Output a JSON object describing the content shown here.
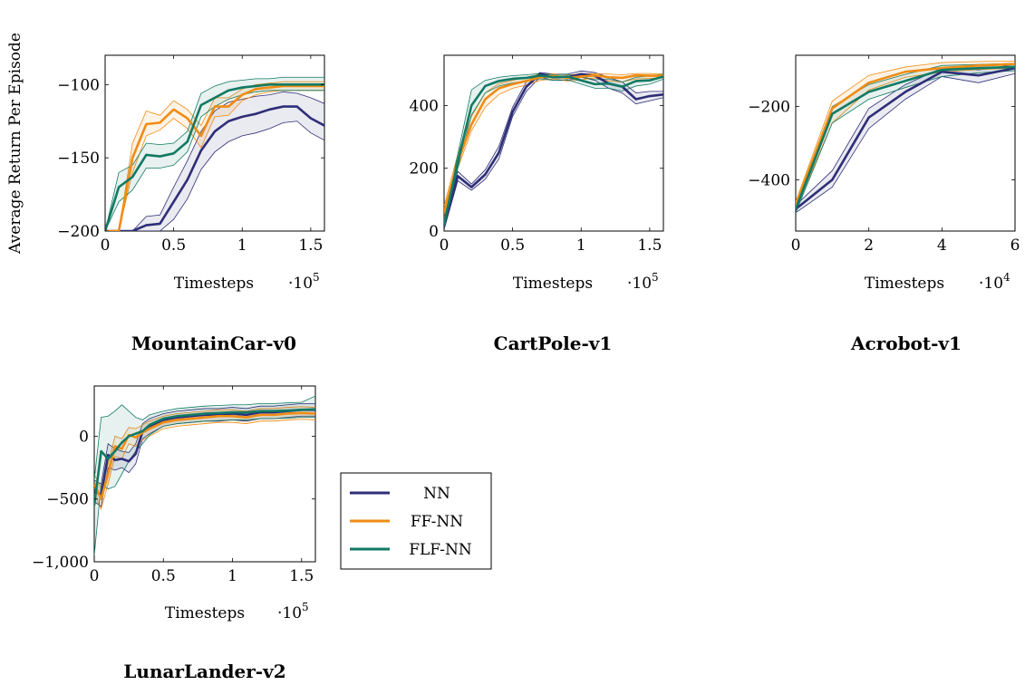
{
  "ylabel": "Average Return Per Episode",
  "colors": {
    "NN": "#2e2e78",
    "FF-NN": "#f08c14",
    "FLF-NN": "#127a64"
  },
  "legend": {
    "placement": "right of LunarLander-v2",
    "entries": [
      "NN",
      "FF-NN",
      "FLF-NN"
    ]
  },
  "chart_data": [
    {
      "type": "line",
      "title": "MountainCar-v0",
      "xlabel": "Timesteps",
      "xscale_label": "·10",
      "xscale_exp": "5",
      "xlim": [
        0,
        1.6
      ],
      "ylim": [
        -200,
        -80
      ],
      "xticks": [
        0,
        0.5,
        1,
        1.5
      ],
      "xtick_labels": [
        "0",
        "0.5",
        "1",
        "1.5"
      ],
      "yticks": [
        -200,
        -150,
        -100
      ],
      "ytick_labels": [
        "−200",
        "−150",
        "−100"
      ],
      "show_ylabel": true,
      "series": [
        {
          "name": "NN",
          "x": [
            0,
            0.1,
            0.2,
            0.3,
            0.4,
            0.5,
            0.6,
            0.7,
            0.8,
            0.9,
            1.0,
            1.1,
            1.2,
            1.3,
            1.4,
            1.5,
            1.6
          ],
          "mean": [
            -200,
            -200,
            -200,
            -196,
            -195,
            -180,
            -165,
            -145,
            -132,
            -125,
            -122,
            -120,
            -117,
            -115,
            -115,
            -123,
            -128
          ],
          "upper": [
            -200,
            -200,
            -200,
            -190,
            -189,
            -170,
            -152,
            -132,
            -118,
            -112,
            -110,
            -108,
            -107,
            -105,
            -106,
            -109,
            -113
          ],
          "lower": [
            -200,
            -200,
            -200,
            -200,
            -200,
            -192,
            -178,
            -158,
            -146,
            -139,
            -135,
            -133,
            -130,
            -126,
            -125,
            -133,
            -138
          ]
        },
        {
          "name": "FF-NN",
          "x": [
            0,
            0.1,
            0.2,
            0.3,
            0.4,
            0.5,
            0.6,
            0.7,
            0.8,
            0.9,
            1.0,
            1.1,
            1.2,
            1.3,
            1.4,
            1.5,
            1.6
          ],
          "mean": [
            -200,
            -200,
            -150,
            -127,
            -126,
            -117,
            -123,
            -135,
            -115,
            -115,
            -107,
            -103,
            -102,
            -101,
            -101,
            -101,
            -101
          ],
          "upper": [
            -200,
            -200,
            -140,
            -118,
            -121,
            -111,
            -117,
            -128,
            -109,
            -109,
            -103,
            -100,
            -99,
            -98,
            -98,
            -98,
            -98
          ],
          "lower": [
            -200,
            -200,
            -160,
            -135,
            -131,
            -123,
            -130,
            -143,
            -122,
            -121,
            -111,
            -107,
            -105,
            -104,
            -104,
            -104,
            -104
          ]
        },
        {
          "name": "FLF-NN",
          "x": [
            0,
            0.1,
            0.2,
            0.3,
            0.4,
            0.5,
            0.6,
            0.7,
            0.8,
            0.9,
            1.0,
            1.1,
            1.2,
            1.3,
            1.4,
            1.5,
            1.6
          ],
          "mean": [
            -200,
            -170,
            -163,
            -148,
            -149,
            -147,
            -139,
            -114,
            -109,
            -104,
            -102,
            -101,
            -100,
            -100,
            -100,
            -100,
            -100
          ],
          "upper": [
            -200,
            -160,
            -155,
            -140,
            -141,
            -140,
            -132,
            -106,
            -101,
            -98,
            -97,
            -96,
            -96,
            -95,
            -95,
            -95,
            -95
          ],
          "lower": [
            -200,
            -180,
            -172,
            -157,
            -157,
            -155,
            -146,
            -122,
            -115,
            -110,
            -107,
            -105,
            -104,
            -104,
            -104,
            -104,
            -104
          ]
        }
      ]
    },
    {
      "type": "line",
      "title": "CartPole-v1",
      "xlabel": "Timesteps",
      "xscale_label": "·10",
      "xscale_exp": "5",
      "xlim": [
        0,
        1.6
      ],
      "ylim": [
        0,
        560
      ],
      "xticks": [
        0,
        0.5,
        1,
        1.5
      ],
      "xtick_labels": [
        "0",
        "0.5",
        "1",
        "1.5"
      ],
      "yticks": [
        0,
        200,
        400
      ],
      "ytick_labels": [
        "0",
        "200",
        "400"
      ],
      "show_ylabel": false,
      "series": [
        {
          "name": "NN",
          "x": [
            0,
            0.1,
            0.2,
            0.3,
            0.4,
            0.5,
            0.6,
            0.7,
            0.8,
            0.9,
            1.0,
            1.1,
            1.2,
            1.3,
            1.4,
            1.5,
            1.6
          ],
          "mean": [
            15,
            175,
            140,
            180,
            250,
            380,
            460,
            500,
            490,
            490,
            500,
            495,
            470,
            460,
            420,
            430,
            435
          ],
          "upper": [
            25,
            190,
            150,
            195,
            270,
            395,
            475,
            505,
            500,
            500,
            510,
            505,
            490,
            475,
            440,
            445,
            445
          ],
          "lower": [
            5,
            160,
            130,
            165,
            230,
            365,
            445,
            490,
            480,
            480,
            490,
            480,
            455,
            440,
            405,
            415,
            425
          ]
        },
        {
          "name": "FF-NN",
          "x": [
            0,
            0.1,
            0.2,
            0.3,
            0.4,
            0.5,
            0.6,
            0.7,
            0.8,
            0.9,
            1.0,
            1.1,
            1.2,
            1.3,
            1.4,
            1.5,
            1.6
          ],
          "mean": [
            60,
            220,
            340,
            420,
            455,
            468,
            478,
            490,
            494,
            488,
            492,
            496,
            490,
            488,
            496,
            495,
            495
          ],
          "upper": [
            80,
            245,
            365,
            440,
            470,
            480,
            490,
            500,
            500,
            498,
            500,
            502,
            500,
            498,
            502,
            502,
            500
          ],
          "lower": [
            40,
            200,
            320,
            395,
            435,
            455,
            465,
            480,
            485,
            478,
            482,
            488,
            478,
            475,
            485,
            486,
            488
          ]
        },
        {
          "name": "FLF-NN",
          "x": [
            0,
            0.1,
            0.2,
            0.3,
            0.4,
            0.5,
            0.6,
            0.7,
            0.8,
            0.9,
            1.0,
            1.1,
            1.2,
            1.3,
            1.4,
            1.5,
            1.6
          ],
          "mean": [
            20,
            220,
            400,
            462,
            478,
            485,
            488,
            495,
            490,
            492,
            480,
            468,
            470,
            460,
            478,
            480,
            492
          ],
          "upper": [
            35,
            245,
            450,
            480,
            490,
            495,
            498,
            502,
            498,
            500,
            492,
            482,
            485,
            475,
            490,
            494,
            500
          ],
          "lower": [
            10,
            200,
            370,
            440,
            462,
            472,
            478,
            485,
            480,
            482,
            468,
            455,
            455,
            446,
            462,
            468,
            484
          ]
        }
      ]
    },
    {
      "type": "line",
      "title": "Acrobot-v1",
      "xlabel": "Timesteps",
      "xscale_label": "·10",
      "xscale_exp": "4",
      "xlim": [
        0,
        6
      ],
      "ylim": [
        -540,
        -60
      ],
      "xticks": [
        0,
        2,
        4,
        6
      ],
      "xtick_labels": [
        "0",
        "2",
        "4",
        "6"
      ],
      "yticks": [
        -400,
        -200
      ],
      "ytick_labels": [
        "−400",
        "−200"
      ],
      "show_ylabel": false,
      "series": [
        {
          "name": "NN",
          "x": [
            0,
            1,
            2,
            3,
            4,
            5,
            6
          ],
          "mean": [
            -480,
            -400,
            -230,
            -160,
            -105,
            -115,
            -95
          ],
          "upper": [
            -470,
            -375,
            -205,
            -140,
            -95,
            -100,
            -85
          ],
          "lower": [
            -490,
            -420,
            -260,
            -180,
            -118,
            -135,
            -110
          ]
        },
        {
          "name": "FF-NN",
          "x": [
            0,
            1,
            2,
            3,
            4,
            5,
            6
          ],
          "mean": [
            -470,
            -205,
            -135,
            -105,
            -95,
            -88,
            -84
          ],
          "upper": [
            -460,
            -185,
            -115,
            -92,
            -80,
            -77,
            -76
          ],
          "lower": [
            -480,
            -245,
            -155,
            -120,
            -106,
            -99,
            -95
          ]
        },
        {
          "name": "FLF-NN",
          "x": [
            0,
            1,
            2,
            3,
            4,
            5,
            6
          ],
          "mean": [
            -480,
            -220,
            -160,
            -130,
            -100,
            -95,
            -92
          ],
          "upper": [
            -470,
            -200,
            -140,
            -112,
            -88,
            -85,
            -82
          ],
          "lower": [
            -490,
            -245,
            -180,
            -148,
            -118,
            -108,
            -102
          ]
        }
      ]
    },
    {
      "type": "line",
      "title": "LunarLander-v2",
      "xlabel": "Timesteps",
      "xscale_label": "·10",
      "xscale_exp": "5",
      "xlim": [
        0,
        1.6
      ],
      "ylim": [
        -1000,
        400
      ],
      "xticks": [
        0,
        0.5,
        1,
        1.5
      ],
      "xtick_labels": [
        "0",
        "0.5",
        "1",
        "1.5"
      ],
      "yticks": [
        -1000,
        -500,
        0
      ],
      "ytick_labels": [
        "−1,000",
        "−500",
        "0"
      ],
      "show_ylabel": false,
      "series": [
        {
          "name": "NN",
          "x": [
            0,
            0.05,
            0.1,
            0.15,
            0.2,
            0.25,
            0.3,
            0.35,
            0.4,
            0.5,
            0.6,
            0.7,
            0.8,
            0.9,
            1.0,
            1.1,
            1.2,
            1.3,
            1.4,
            1.5,
            1.6
          ],
          "mean": [
            -430,
            -470,
            -150,
            -190,
            -180,
            -200,
            -140,
            40,
            80,
            130,
            150,
            160,
            170,
            170,
            180,
            170,
            190,
            190,
            200,
            210,
            210
          ],
          "upper": [
            -350,
            -380,
            -60,
            -100,
            -120,
            -130,
            -60,
            100,
            140,
            180,
            200,
            210,
            220,
            220,
            230,
            220,
            240,
            240,
            250,
            260,
            260
          ],
          "lower": [
            -520,
            -560,
            -250,
            -270,
            -250,
            -290,
            -220,
            -20,
            20,
            80,
            100,
            110,
            120,
            120,
            130,
            120,
            140,
            140,
            150,
            160,
            160
          ]
        },
        {
          "name": "FF-NN",
          "x": [
            0,
            0.05,
            0.1,
            0.15,
            0.2,
            0.25,
            0.3,
            0.35,
            0.4,
            0.5,
            0.6,
            0.7,
            0.8,
            0.9,
            1.0,
            1.1,
            1.2,
            1.3,
            1.4,
            1.5,
            1.6
          ],
          "mean": [
            -380,
            -500,
            -300,
            -80,
            -100,
            10,
            -10,
            30,
            60,
            110,
            130,
            140,
            150,
            160,
            160,
            150,
            170,
            170,
            180,
            185,
            180
          ],
          "upper": [
            -300,
            -420,
            -220,
            0,
            -20,
            70,
            60,
            90,
            120,
            160,
            180,
            190,
            200,
            210,
            210,
            200,
            220,
            220,
            230,
            235,
            230
          ],
          "lower": [
            -460,
            -580,
            -380,
            -160,
            -180,
            -60,
            -80,
            -30,
            0,
            60,
            80,
            90,
            100,
            110,
            110,
            100,
            120,
            120,
            130,
            135,
            130
          ]
        },
        {
          "name": "FLF-NN",
          "x": [
            0,
            0.05,
            0.1,
            0.15,
            0.2,
            0.25,
            0.3,
            0.35,
            0.4,
            0.5,
            0.6,
            0.7,
            0.8,
            0.9,
            1.0,
            1.1,
            1.2,
            1.3,
            1.4,
            1.5,
            1.6
          ],
          "mean": [
            -550,
            -120,
            -180,
            -120,
            -50,
            0,
            20,
            40,
            90,
            140,
            160,
            170,
            180,
            185,
            190,
            190,
            200,
            200,
            205,
            210,
            215
          ],
          "upper": [
            -350,
            150,
            160,
            200,
            250,
            200,
            150,
            130,
            170,
            200,
            220,
            230,
            240,
            245,
            250,
            250,
            260,
            260,
            265,
            270,
            320
          ],
          "lower": [
            -950,
            -380,
            -420,
            -400,
            -300,
            -200,
            -120,
            -60,
            10,
            80,
            100,
            110,
            120,
            125,
            130,
            130,
            140,
            140,
            145,
            150,
            150
          ]
        }
      ]
    }
  ]
}
